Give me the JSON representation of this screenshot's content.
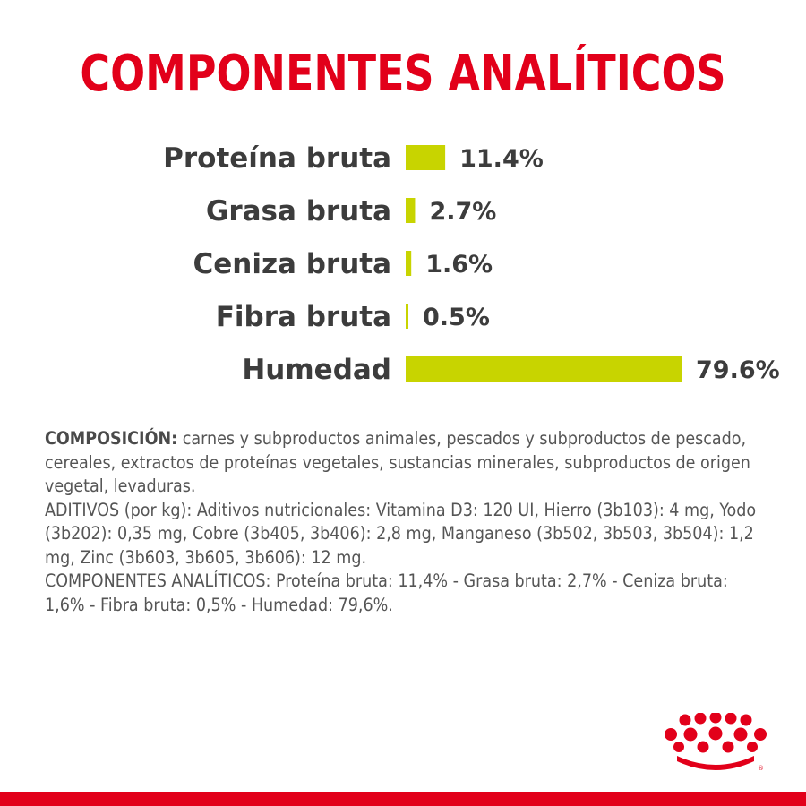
{
  "title": "COMPONENTES ANALÍTICOS",
  "chart_data": {
    "type": "bar",
    "orientation": "horizontal",
    "categories": [
      "Proteína bruta",
      "Grasa bruta",
      "Ceniza bruta",
      "Fibra bruta",
      "Humedad"
    ],
    "values": [
      11.4,
      2.7,
      1.6,
      0.5,
      79.6
    ],
    "value_labels": [
      "11.4%",
      "2.7%",
      "1.6%",
      "0.5%",
      "79.6%"
    ],
    "unit": "%",
    "bar_color": "#c8d400",
    "title": "COMPONENTES ANALÍTICOS",
    "xlabel": "",
    "ylabel": "",
    "grid": false,
    "legend": "none"
  },
  "composition": {
    "heading": "COMPOSICIÓN:",
    "text": " carnes y subproductos animales, pescados y subproductos de pescado, cereales, extractos de proteínas vegetales, sustancias minerales, subproductos de origen vegetal, levaduras.",
    "additives": "ADITIVOS (por kg): Aditivos nutricionales: Vitamina D3: 120 UI, Hierro (3b103): 4 mg, Yodo (3b202): 0,35 mg, Cobre (3b405, 3b406): 2,8 mg, Manganeso (3b502, 3b503, 3b504): 1,2 mg, Zinc (3b603, 3b605, 3b606): 12 mg.",
    "analytical": "COMPONENTES ANALÍTICOS: Proteína bruta: 11,4% - Grasa bruta: 2,7% - Ceniza bruta: 1,6% - Fibra bruta: 0,5% - Humedad: 79,6%."
  },
  "colors": {
    "brand_red": "#e2001a",
    "bar": "#c8d400",
    "text_dark": "#3c3c3c",
    "text_body": "#555555"
  },
  "logo": "royal-crown-logo"
}
